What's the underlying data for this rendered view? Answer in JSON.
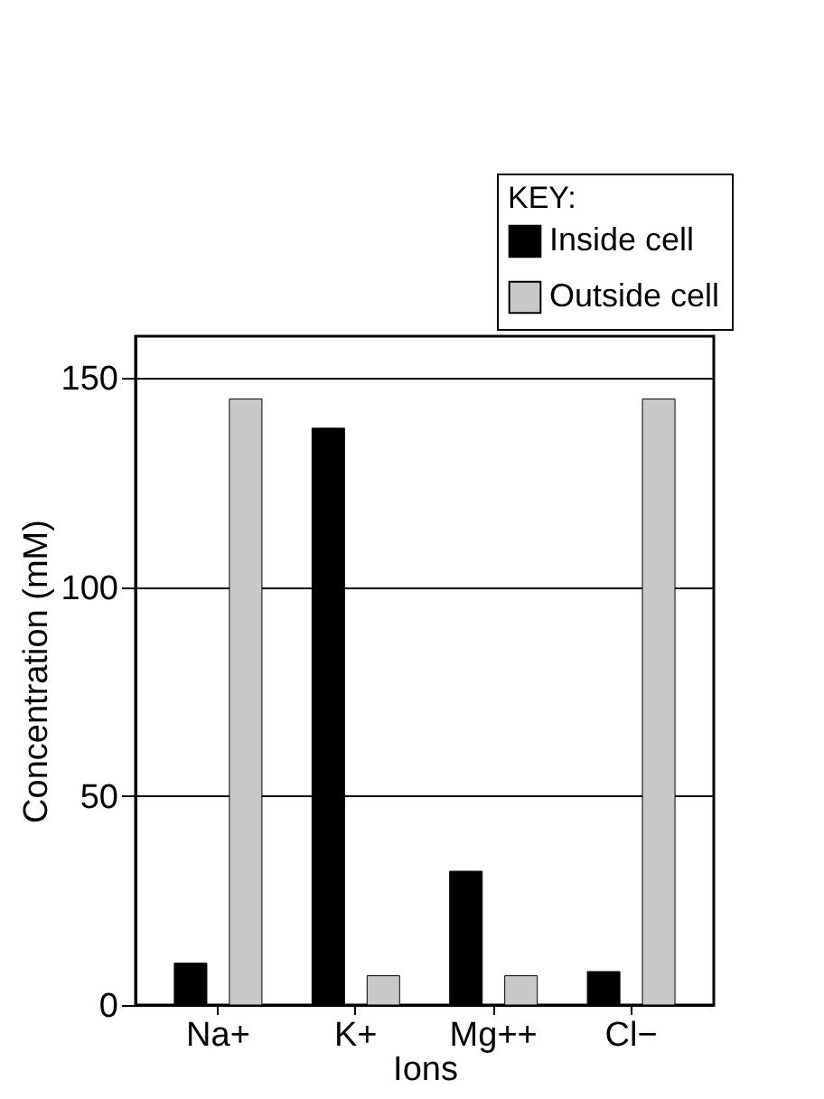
{
  "chart_data": {
    "type": "bar",
    "xlabel": "Ions",
    "ylabel": "Concentration (mM)",
    "legend_title": "KEY:",
    "categories": [
      "Na+",
      "K+",
      "Mg++",
      "Cl−"
    ],
    "series": [
      {
        "name": "Inside cell",
        "color": "#000000",
        "values": [
          10,
          138,
          32,
          8
        ]
      },
      {
        "name": "Outside cell",
        "color": "#c8c8c8",
        "values": [
          145,
          7,
          7,
          145
        ]
      }
    ],
    "ylim": [
      0,
      160
    ],
    "yticks": [
      0,
      50,
      100,
      150
    ],
    "grid": "y",
    "legend": "top right"
  }
}
